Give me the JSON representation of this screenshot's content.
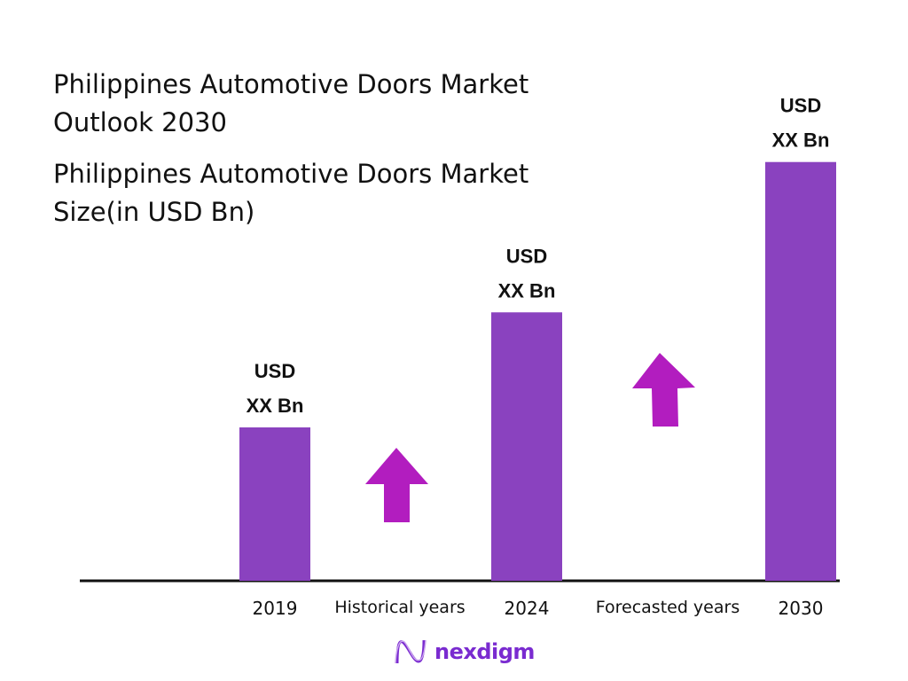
{
  "title": "Philippines Automotive Doors Market Outlook 2030",
  "subtitle": "Philippines Automotive Doors Market Size(in USD Bn)",
  "chart_data": {
    "type": "bar",
    "title": "Philippines Automotive Doors Market Outlook 2030",
    "subtitle": "Philippines Automotive Doors Market Size(in USD Bn)",
    "categories": [
      "2019",
      "2024",
      "2030"
    ],
    "values": [
      1.0,
      1.75,
      2.73
    ],
    "data_labels": [
      [
        "USD",
        "XX Bn"
      ],
      [
        "USD",
        "XX Bn"
      ],
      [
        "USD",
        "XX Bn"
      ]
    ],
    "period_labels": [
      "Historical years",
      "Forecasted years"
    ],
    "grid": false,
    "bar_color": "#8a42bf",
    "arrow_color": "#b21dbf"
  },
  "logo": {
    "text": "nexdigm",
    "color": "#7a2bd0"
  }
}
